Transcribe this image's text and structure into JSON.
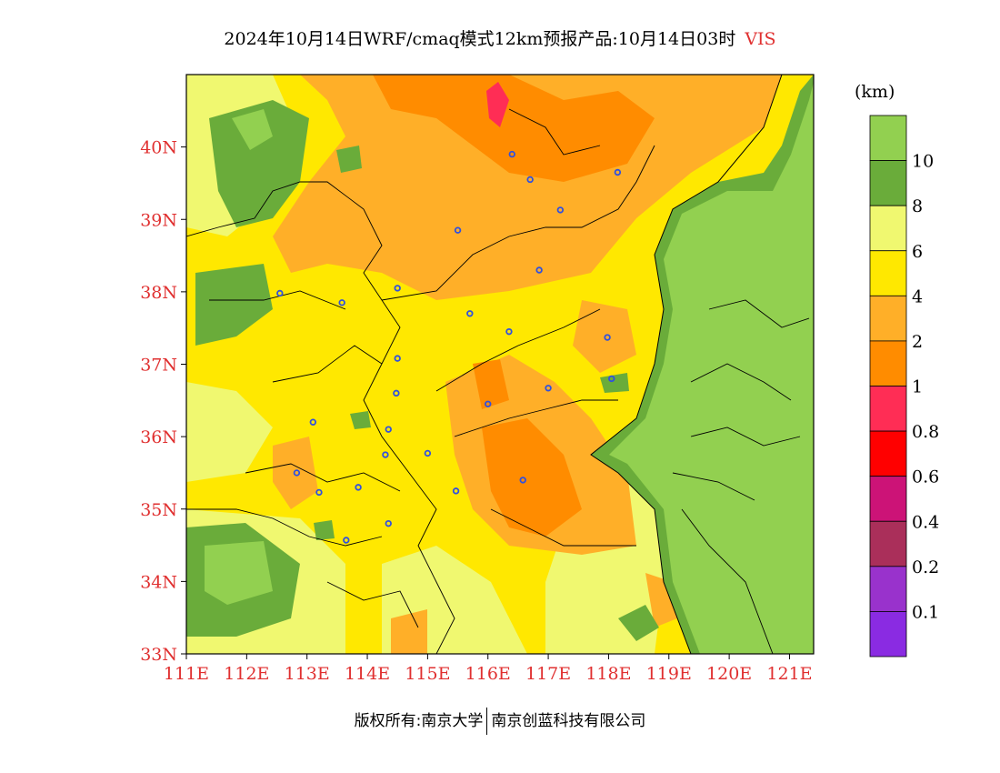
{
  "title": {
    "main": "2024年10月14日WRF/cmaq模式12km预报产品:10月14日03时",
    "variable": "VIS"
  },
  "units": "(km)",
  "axes": {
    "lat_labels": [
      "40N",
      "39N",
      "38N",
      "37N",
      "36N",
      "35N",
      "34N",
      "33N"
    ],
    "lat_values": [
      40,
      39,
      38,
      37,
      36,
      35,
      34,
      33
    ],
    "lon_labels": [
      "111E",
      "112E",
      "113E",
      "114E",
      "115E",
      "116E",
      "117E",
      "118E",
      "119E",
      "120E",
      "121E"
    ],
    "lon_values": [
      111,
      112,
      113,
      114,
      115,
      116,
      117,
      118,
      119,
      120,
      121
    ],
    "lat_range": [
      33,
      41
    ],
    "lon_range": [
      111,
      121.4
    ]
  },
  "legend": {
    "colors": [
      "#92d050",
      "#6aac3a",
      "#f0f870",
      "#ffe800",
      "#ffaf28",
      "#ff8c00",
      "#ff2d55",
      "#ff0000",
      "#cc1377",
      "#aa2f5a",
      "#9932cc",
      "#8a2be2"
    ],
    "labels": [
      "10",
      "8",
      "6",
      "4",
      "2",
      "1",
      "0.8",
      "0.6",
      "0.4",
      "0.2",
      "0.1"
    ]
  },
  "cities": [
    {
      "lon": 116.4,
      "lat": 39.9
    },
    {
      "lon": 116.7,
      "lat": 39.55
    },
    {
      "lon": 118.15,
      "lat": 39.65
    },
    {
      "lon": 117.2,
      "lat": 39.13
    },
    {
      "lon": 115.5,
      "lat": 38.85
    },
    {
      "lon": 116.85,
      "lat": 38.3
    },
    {
      "lon": 112.55,
      "lat": 37.98
    },
    {
      "lon": 113.58,
      "lat": 37.85
    },
    {
      "lon": 114.5,
      "lat": 38.05
    },
    {
      "lon": 115.7,
      "lat": 37.7
    },
    {
      "lon": 116.35,
      "lat": 37.45
    },
    {
      "lon": 117.98,
      "lat": 37.37
    },
    {
      "lon": 114.5,
      "lat": 37.08
    },
    {
      "lon": 117.0,
      "lat": 36.67
    },
    {
      "lon": 118.05,
      "lat": 36.8
    },
    {
      "lon": 114.48,
      "lat": 36.6
    },
    {
      "lon": 116.0,
      "lat": 36.45
    },
    {
      "lon": 113.1,
      "lat": 36.2
    },
    {
      "lon": 114.35,
      "lat": 36.1
    },
    {
      "lon": 114.3,
      "lat": 35.75
    },
    {
      "lon": 115.0,
      "lat": 35.77
    },
    {
      "lon": 112.83,
      "lat": 35.5
    },
    {
      "lon": 116.58,
      "lat": 35.4
    },
    {
      "lon": 113.85,
      "lat": 35.3
    },
    {
      "lon": 113.2,
      "lat": 35.23
    },
    {
      "lon": 115.47,
      "lat": 35.25
    },
    {
      "lon": 114.35,
      "lat": 34.8
    },
    {
      "lon": 113.65,
      "lat": 34.57
    }
  ],
  "copyright": {
    "left": "版权所有:南京大学",
    "right": "南京创蓝科技有限公司"
  }
}
